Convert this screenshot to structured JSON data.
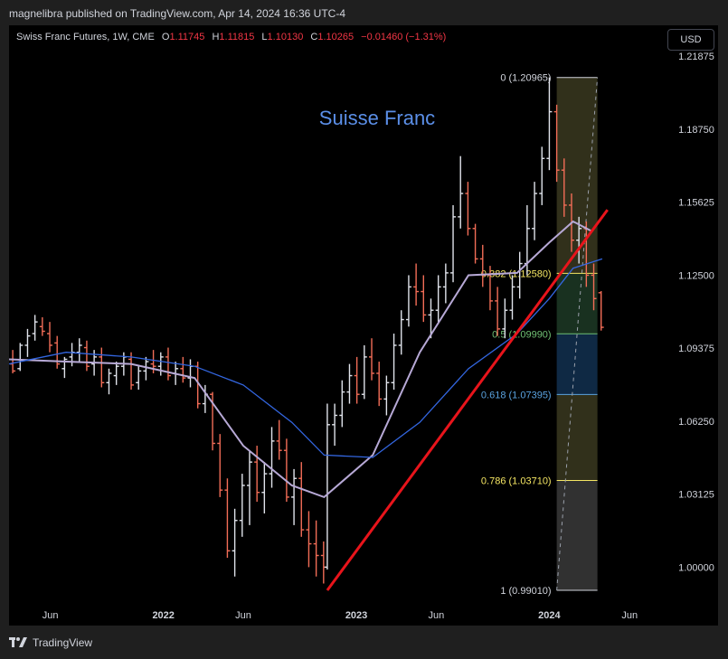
{
  "header": {
    "publisher": "magnelibra published on TradingView.com, Apr 14, 2024 16:36 UTC-4"
  },
  "legend": {
    "symbol": "Swiss Franc Futures, 1W, CME",
    "open_label": "O",
    "open": "1.11745",
    "high_label": "H",
    "high": "1.11815",
    "low_label": "L",
    "low": "1.10130",
    "close_label": "C",
    "close": "1.10265",
    "change": "−0.01460 (−1.31%)"
  },
  "currency_button": "USD",
  "footer": {
    "brand": "TradingView"
  },
  "colors": {
    "up": "#e0e3eb",
    "down": "#f26d57",
    "ma_fast": "#b7a9d6",
    "ma_slow": "#3366e0",
    "trendline": "#e8141b",
    "annotation": "#5b8fe8",
    "fib_yellow": "#f5e663",
    "fib_green": "#6fbf73",
    "fib_blue": "#5aa3e0"
  },
  "chart_data": {
    "type": "line",
    "title": "Suisse Franc",
    "xlabel": "",
    "ylabel": "",
    "x_tick_labels": [
      "Jun",
      "2022",
      "Jun",
      "2023",
      "Jun",
      "2024",
      "Jun"
    ],
    "x_tick_dates": [
      "2021-06-01",
      "2022-01-01",
      "2022-06-01",
      "2023-01-01",
      "2023-06-01",
      "2024-01-01",
      "2024-06-01"
    ],
    "y_tick_labels": [
      "1.21875",
      "1.18750",
      "1.15625",
      "1.12500",
      "1.09375",
      "1.06250",
      "1.03125",
      "1.00000"
    ],
    "y_ticks": [
      1.21875,
      1.1875,
      1.15625,
      1.125,
      1.09375,
      1.0625,
      1.03125,
      1.0
    ],
    "ylim": [
      0.975,
      1.232
    ],
    "x_range": [
      "2021-03-15",
      "2024-07-15"
    ],
    "grid": false,
    "candles": [
      [
        "2021-03-22",
        1.087,
        1.093,
        1.083,
        1.084
      ],
      [
        "2021-04-05",
        1.085,
        1.096,
        1.084,
        1.095
      ],
      [
        "2021-04-19",
        1.095,
        1.102,
        1.09,
        1.099
      ],
      [
        "2021-05-03",
        1.1,
        1.108,
        1.097,
        1.105
      ],
      [
        "2021-05-17",
        1.103,
        1.107,
        1.099,
        1.101
      ],
      [
        "2021-05-31",
        1.1,
        1.105,
        1.092,
        1.095
      ],
      [
        "2021-06-14",
        1.096,
        1.099,
        1.085,
        1.087
      ],
      [
        "2021-06-28",
        1.085,
        1.09,
        1.081,
        1.089
      ],
      [
        "2021-07-12",
        1.09,
        1.096,
        1.086,
        1.092
      ],
      [
        "2021-07-26",
        1.092,
        1.098,
        1.088,
        1.095
      ],
      [
        "2021-08-09",
        1.094,
        1.097,
        1.084,
        1.086
      ],
      [
        "2021-08-23",
        1.087,
        1.093,
        1.082,
        1.09
      ],
      [
        "2021-09-06",
        1.09,
        1.094,
        1.077,
        1.079
      ],
      [
        "2021-09-20",
        1.079,
        1.085,
        1.074,
        1.083
      ],
      [
        "2021-10-04",
        1.082,
        1.088,
        1.078,
        1.086
      ],
      [
        "2021-10-18",
        1.086,
        1.092,
        1.082,
        1.09
      ],
      [
        "2021-11-01",
        1.089,
        1.092,
        1.076,
        1.078
      ],
      [
        "2021-11-15",
        1.079,
        1.086,
        1.076,
        1.084
      ],
      [
        "2021-11-29",
        1.084,
        1.09,
        1.08,
        1.088
      ],
      [
        "2021-12-13",
        1.087,
        1.093,
        1.083,
        1.086
      ],
      [
        "2021-12-27",
        1.086,
        1.092,
        1.082,
        1.09
      ],
      [
        "2022-01-10",
        1.09,
        1.094,
        1.08,
        1.082
      ],
      [
        "2022-01-24",
        1.083,
        1.088,
        1.078,
        1.085
      ],
      [
        "2022-02-07",
        1.085,
        1.09,
        1.079,
        1.081
      ],
      [
        "2022-02-21",
        1.081,
        1.089,
        1.077,
        1.086
      ],
      [
        "2022-03-07",
        1.086,
        1.088,
        1.068,
        1.07
      ],
      [
        "2022-03-21",
        1.07,
        1.078,
        1.066,
        1.074
      ],
      [
        "2022-04-04",
        1.074,
        1.075,
        1.05,
        1.053
      ],
      [
        "2022-04-18",
        1.053,
        1.057,
        1.03,
        1.033
      ],
      [
        "2022-05-02",
        1.033,
        1.038,
        1.004,
        1.007
      ],
      [
        "2022-05-16",
        1.007,
        1.025,
        0.996,
        1.02
      ],
      [
        "2022-05-30",
        1.02,
        1.04,
        1.013,
        1.035
      ],
      [
        "2022-06-13",
        1.035,
        1.05,
        1.018,
        1.045
      ],
      [
        "2022-06-27",
        1.045,
        1.052,
        1.028,
        1.032
      ],
      [
        "2022-07-11",
        1.032,
        1.045,
        1.023,
        1.04
      ],
      [
        "2022-07-25",
        1.04,
        1.06,
        1.034,
        1.054
      ],
      [
        "2022-08-08",
        1.054,
        1.063,
        1.046,
        1.05
      ],
      [
        "2022-08-22",
        1.05,
        1.055,
        1.028,
        1.03
      ],
      [
        "2022-09-05",
        1.03,
        1.042,
        1.018,
        1.038
      ],
      [
        "2022-09-19",
        1.038,
        1.045,
        1.013,
        1.016
      ],
      [
        "2022-10-03",
        1.016,
        1.024,
        1.0,
        1.01
      ],
      [
        "2022-10-17",
        1.01,
        1.02,
        0.996,
        1.005
      ],
      [
        "2022-10-31",
        1.005,
        1.011,
        0.993,
        1.0
      ],
      [
        "2022-11-07",
        1.0,
        1.07,
        0.999,
        1.061
      ],
      [
        "2022-11-21",
        1.061,
        1.07,
        1.052,
        1.065
      ],
      [
        "2022-12-05",
        1.065,
        1.08,
        1.06,
        1.075
      ],
      [
        "2022-12-19",
        1.075,
        1.087,
        1.07,
        1.082
      ],
      [
        "2023-01-02",
        1.082,
        1.09,
        1.07,
        1.074
      ],
      [
        "2023-01-16",
        1.074,
        1.095,
        1.072,
        1.09
      ],
      [
        "2023-01-30",
        1.09,
        1.098,
        1.08,
        1.083
      ],
      [
        "2023-02-13",
        1.083,
        1.088,
        1.069,
        1.072
      ],
      [
        "2023-02-27",
        1.072,
        1.082,
        1.065,
        1.079
      ],
      [
        "2023-03-13",
        1.079,
        1.1,
        1.076,
        1.095
      ],
      [
        "2023-03-27",
        1.095,
        1.11,
        1.091,
        1.106
      ],
      [
        "2023-04-10",
        1.106,
        1.125,
        1.103,
        1.12
      ],
      [
        "2023-04-24",
        1.12,
        1.13,
        1.112,
        1.118
      ],
      [
        "2023-05-08",
        1.118,
        1.125,
        1.105,
        1.108
      ],
      [
        "2023-05-22",
        1.108,
        1.115,
        1.098,
        1.11
      ],
      [
        "2023-06-05",
        1.11,
        1.125,
        1.105,
        1.12
      ],
      [
        "2023-06-19",
        1.12,
        1.13,
        1.113,
        1.126
      ],
      [
        "2023-07-03",
        1.126,
        1.155,
        1.122,
        1.15
      ],
      [
        "2023-07-17",
        1.15,
        1.176,
        1.145,
        1.16
      ],
      [
        "2023-07-31",
        1.16,
        1.165,
        1.142,
        1.145
      ],
      [
        "2023-08-14",
        1.145,
        1.147,
        1.13,
        1.132
      ],
      [
        "2023-08-28",
        1.132,
        1.138,
        1.12,
        1.125
      ],
      [
        "2023-09-11",
        1.125,
        1.129,
        1.11,
        1.114
      ],
      [
        "2023-09-25",
        1.114,
        1.12,
        1.099,
        1.102
      ],
      [
        "2023-10-09",
        1.102,
        1.115,
        1.098,
        1.11
      ],
      [
        "2023-10-23",
        1.11,
        1.125,
        1.106,
        1.12
      ],
      [
        "2023-11-06",
        1.12,
        1.135,
        1.115,
        1.13
      ],
      [
        "2023-11-20",
        1.13,
        1.155,
        1.125,
        1.145
      ],
      [
        "2023-12-04",
        1.145,
        1.165,
        1.14,
        1.16
      ],
      [
        "2023-12-18",
        1.16,
        1.18,
        1.155,
        1.175
      ],
      [
        "2024-01-01",
        1.175,
        1.2097,
        1.17,
        1.195
      ],
      [
        "2024-01-15",
        1.195,
        1.198,
        1.165,
        1.17
      ],
      [
        "2024-01-29",
        1.17,
        1.175,
        1.15,
        1.155
      ],
      [
        "2024-02-12",
        1.155,
        1.16,
        1.135,
        1.14
      ],
      [
        "2024-02-26",
        1.14,
        1.15,
        1.13,
        1.145
      ],
      [
        "2024-03-11",
        1.145,
        1.148,
        1.12,
        1.125
      ],
      [
        "2024-03-25",
        1.125,
        1.13,
        1.11,
        1.115
      ],
      [
        "2024-04-08",
        1.1175,
        1.1182,
        1.1013,
        1.1027
      ]
    ],
    "series": [
      {
        "name": "",
        "x": [
          "2021-03-15",
          "2021-07-01",
          "2021-11-01",
          "2022-03-01",
          "2022-06-01",
          "2022-09-01",
          "2022-11-01",
          "2023-02-01",
          "2023-05-01",
          "2023-08-01",
          "2023-11-01",
          "2024-01-01",
          "2024-02-15",
          "2024-03-20"
        ],
        "values": [
          1.089,
          1.088,
          1.087,
          1.081,
          1.052,
          1.035,
          1.03,
          1.048,
          1.092,
          1.125,
          1.126,
          1.139,
          1.148,
          1.144
        ]
      },
      {
        "name": "",
        "x": [
          "2021-03-15",
          "2021-07-01",
          "2021-11-01",
          "2022-03-01",
          "2022-06-01",
          "2022-09-01",
          "2022-11-01",
          "2023-02-01",
          "2023-05-01",
          "2023-08-01",
          "2023-11-01",
          "2024-01-01",
          "2024-02-15",
          "2024-04-10"
        ],
        "values": [
          1.087,
          1.092,
          1.09,
          1.086,
          1.078,
          1.062,
          1.048,
          1.047,
          1.062,
          1.085,
          1.1,
          1.115,
          1.128,
          1.132
        ]
      }
    ],
    "trendline": {
      "x": [
        "2022-11-07",
        "2024-04-20"
      ],
      "y": [
        0.9901,
        1.153
      ]
    },
    "fib_retracement": {
      "start_date": "2024-01-15",
      "end_date": "2024-04-01",
      "levels": [
        {
          "label": "0 (1.20965)",
          "ratio": 0,
          "price": 1.20965
        },
        {
          "label": "0.382 (1.12580)",
          "ratio": 0.382,
          "price": 1.1258
        },
        {
          "label": "0.5 (1.09990)",
          "ratio": 0.5,
          "price": 1.0999
        },
        {
          "label": "0.618 (1.07395)",
          "ratio": 0.618,
          "price": 1.07395
        },
        {
          "label": "0.786 (1.03710)",
          "ratio": 0.786,
          "price": 1.0371
        },
        {
          "label": "1 (0.99010)",
          "ratio": 1,
          "price": 0.9901
        }
      ]
    }
  }
}
